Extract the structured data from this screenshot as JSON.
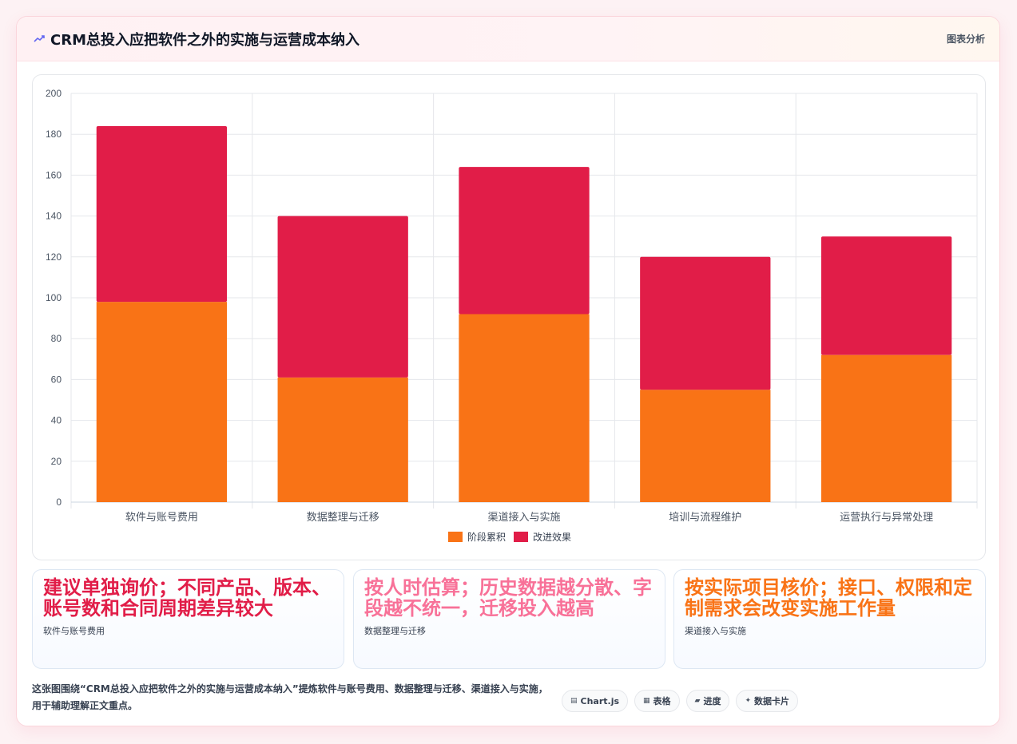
{
  "header": {
    "title": "CRM总投入应把软件之外的实施与运营成本纳入",
    "action_label": "图表分析"
  },
  "chart_data": {
    "type": "bar",
    "stacked": true,
    "categories": [
      "软件与账号费用",
      "数据整理与迁移",
      "渠道接入与实施",
      "培训与流程维护",
      "运营执行与异常处理"
    ],
    "series": [
      {
        "name": "阶段累积",
        "values": [
          98,
          61,
          92,
          55,
          72
        ],
        "color": "#f97316"
      },
      {
        "name": "改进效果",
        "values": [
          86,
          79,
          72,
          65,
          58
        ],
        "color": "#e11d48"
      }
    ],
    "ylim": [
      0,
      200
    ],
    "yticks": [
      0,
      20,
      40,
      60,
      80,
      100,
      120,
      140,
      160,
      180,
      200
    ],
    "grid": true,
    "legend_position": "bottom"
  },
  "cards": [
    {
      "value": "建议单独询价；不同产品、版本、账号数和合同周期差异较大",
      "label": "软件与账号费用",
      "color": "#e11d48"
    },
    {
      "value": "按人时估算；历史数据越分散、字段越不统一，迁移投入越高",
      "label": "数据整理与迁移",
      "color": "#f87198"
    },
    {
      "value": "按实际项目核价；接口、权限和定制需求会改变实施工作量",
      "label": "渠道接入与实施",
      "color": "#f97316"
    }
  ],
  "footer": {
    "description": "这张图围绕“CRM总投入应把软件之外的实施与运营成本纳入”提炼软件与账号费用、数据整理与迁移、渠道接入与实施，用于辅助理解正文重点。",
    "chips": [
      {
        "icon": "▤",
        "label": "Chart.js"
      },
      {
        "icon": "▦",
        "label": "表格"
      },
      {
        "icon": "▰",
        "label": "进度"
      },
      {
        "icon": "✦",
        "label": "数据卡片"
      }
    ]
  }
}
